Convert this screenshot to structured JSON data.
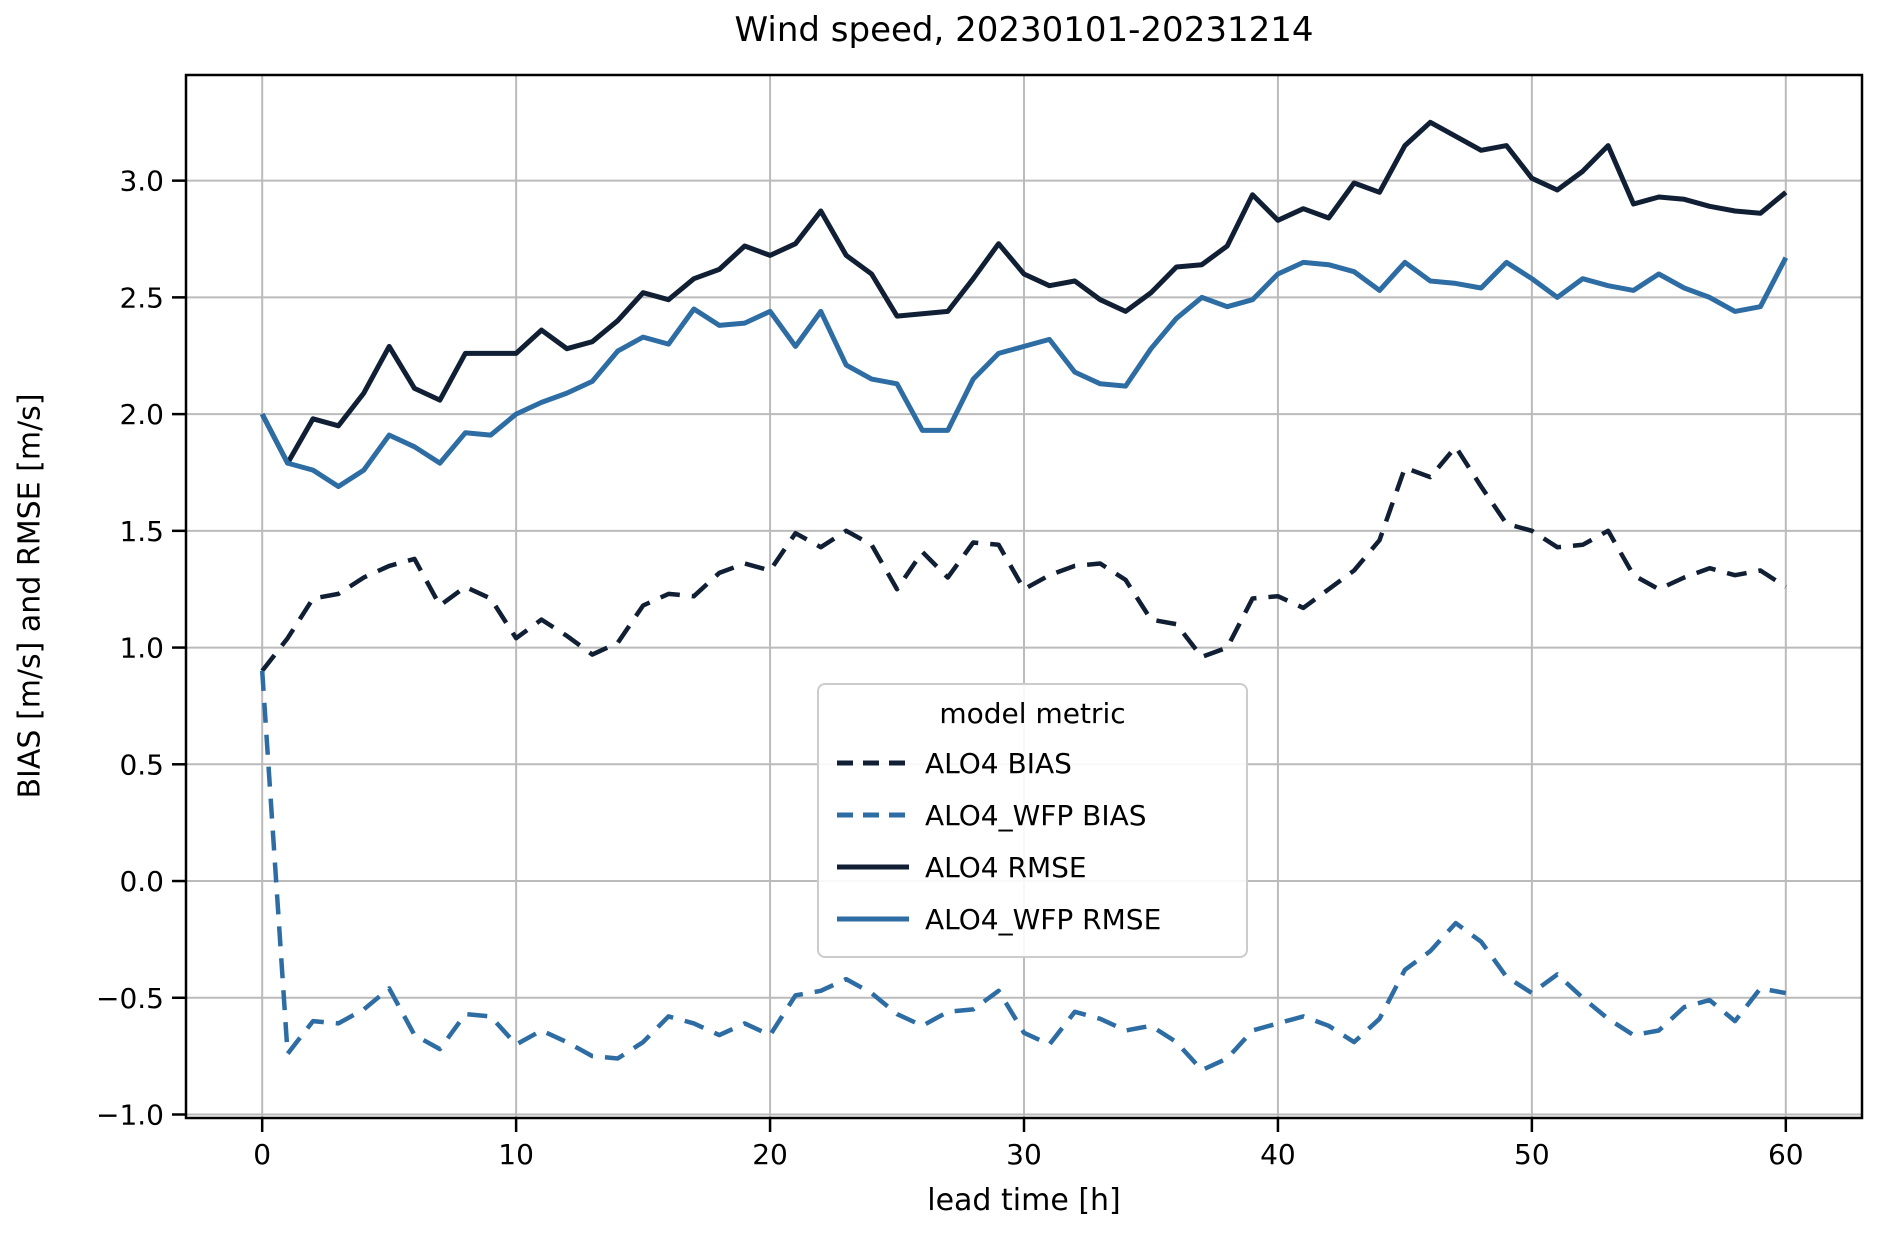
{
  "chart": {
    "title": "Wind speed, 20230101-20231214",
    "xlabel": "lead time [h]",
    "ylabel": "BIAS [m/s] and RMSE [m/s]"
  },
  "legend": {
    "title": "model metric",
    "entries": [
      {
        "label": "ALO4 BIAS",
        "color": "#111f35",
        "line_style": "dashed"
      },
      {
        "label": "ALO4_WFP BIAS",
        "color": "#2d6da4",
        "line_style": "dashed"
      },
      {
        "label": "ALO4 RMSE",
        "color": "#111f35",
        "line_style": "solid"
      },
      {
        "label": "ALO4_WFP RMSE",
        "color": "#2d6da4",
        "line_style": "solid"
      }
    ]
  },
  "colors": {
    "dark_navy": "#111f35",
    "steel_blue": "#2d6da4",
    "grid": "#bbbbbb",
    "spine": "#000000",
    "text": "#000000",
    "legend_border": "#cccccc"
  },
  "chart_data": {
    "type": "line",
    "title": "Wind speed, 20230101-20231214",
    "xlabel": "lead time [h]",
    "ylabel": "BIAS [m/s] and RMSE [m/s]",
    "grid": true,
    "legend_position": "center",
    "xlim": [
      -3.0,
      63.0
    ],
    "ylim": [
      -1.015,
      3.4525
    ],
    "xticks": [
      0,
      10,
      20,
      30,
      40,
      50,
      60
    ],
    "xtick_labels": [
      "0",
      "10",
      "20",
      "30",
      "40",
      "50",
      "60"
    ],
    "ytick_values": [
      -1.0,
      -0.5,
      0.0,
      0.5,
      1.0,
      1.5,
      2.0,
      2.5,
      3.0
    ],
    "ytick_labels": [
      "−1.0",
      "−0.5",
      "0.0",
      "0.5",
      "1.0",
      "1.5",
      "2.0",
      "2.5",
      "3.0"
    ],
    "x": [
      0,
      1,
      2,
      3,
      4,
      5,
      6,
      7,
      8,
      9,
      10,
      11,
      12,
      13,
      14,
      15,
      16,
      17,
      18,
      19,
      20,
      21,
      22,
      23,
      24,
      25,
      26,
      27,
      28,
      29,
      30,
      31,
      32,
      33,
      34,
      35,
      36,
      37,
      38,
      39,
      40,
      41,
      42,
      43,
      44,
      45,
      46,
      47,
      48,
      49,
      50,
      51,
      52,
      53,
      54,
      55,
      56,
      57,
      58,
      59,
      60
    ],
    "series": [
      {
        "name": "ALO4 BIAS",
        "model": "ALO4",
        "metric": "BIAS",
        "color": "#111f35",
        "style": "dashed",
        "values": [
          0.9,
          1.04,
          1.21,
          1.23,
          1.3,
          1.35,
          1.38,
          1.18,
          1.26,
          1.21,
          1.04,
          1.12,
          1.05,
          0.97,
          1.02,
          1.18,
          1.23,
          1.22,
          1.32,
          1.36,
          1.33,
          1.49,
          1.43,
          1.5,
          1.44,
          1.25,
          1.41,
          1.3,
          1.45,
          1.44,
          1.25,
          1.31,
          1.35,
          1.36,
          1.29,
          1.12,
          1.1,
          0.96,
          1.0,
          1.21,
          1.22,
          1.17,
          1.25,
          1.33,
          1.46,
          1.77,
          1.73,
          1.86,
          1.69,
          1.53,
          1.5,
          1.43,
          1.44,
          1.5,
          1.31,
          1.25,
          1.3,
          1.34,
          1.31,
          1.33,
          1.26
        ]
      },
      {
        "name": "ALO4_WFP BIAS",
        "model": "ALO4_WFP",
        "metric": "BIAS",
        "color": "#2d6da4",
        "style": "dashed",
        "values": [
          0.9,
          -0.74,
          -0.6,
          -0.61,
          -0.55,
          -0.46,
          -0.66,
          -0.72,
          -0.57,
          -0.58,
          -0.7,
          -0.64,
          -0.69,
          -0.75,
          -0.76,
          -0.69,
          -0.58,
          -0.61,
          -0.66,
          -0.61,
          -0.66,
          -0.49,
          -0.47,
          -0.42,
          -0.48,
          -0.57,
          -0.62,
          -0.56,
          -0.55,
          -0.47,
          -0.65,
          -0.7,
          -0.56,
          -0.59,
          -0.64,
          -0.62,
          -0.69,
          -0.81,
          -0.76,
          -0.64,
          -0.61,
          -0.58,
          -0.62,
          -0.69,
          -0.59,
          -0.38,
          -0.3,
          -0.18,
          -0.26,
          -0.41,
          -0.48,
          -0.4,
          -0.5,
          -0.59,
          -0.66,
          -0.64,
          -0.54,
          -0.51,
          -0.6,
          -0.46,
          -0.48
        ]
      },
      {
        "name": "ALO4 RMSE",
        "model": "ALO4",
        "metric": "RMSE",
        "color": "#111f35",
        "style": "solid",
        "values": [
          2.0,
          1.79,
          1.98,
          1.95,
          2.09,
          2.29,
          2.11,
          2.06,
          2.26,
          2.26,
          2.26,
          2.36,
          2.28,
          2.31,
          2.4,
          2.52,
          2.49,
          2.58,
          2.62,
          2.72,
          2.68,
          2.73,
          2.87,
          2.68,
          2.6,
          2.42,
          2.43,
          2.44,
          2.58,
          2.73,
          2.6,
          2.55,
          2.57,
          2.49,
          2.44,
          2.52,
          2.63,
          2.64,
          2.72,
          2.94,
          2.83,
          2.88,
          2.84,
          2.99,
          2.95,
          3.15,
          3.25,
          3.19,
          3.13,
          3.15,
          3.01,
          2.96,
          3.04,
          3.15,
          2.9,
          2.93,
          2.92,
          2.89,
          2.87,
          2.86,
          2.95
        ]
      },
      {
        "name": "ALO4_WFP RMSE",
        "model": "ALO4_WFP",
        "metric": "RMSE",
        "color": "#2d6da4",
        "style": "solid",
        "values": [
          2.0,
          1.79,
          1.76,
          1.69,
          1.76,
          1.91,
          1.86,
          1.79,
          1.92,
          1.91,
          2.0,
          2.05,
          2.09,
          2.14,
          2.27,
          2.33,
          2.3,
          2.45,
          2.38,
          2.39,
          2.44,
          2.29,
          2.44,
          2.21,
          2.15,
          2.13,
          1.93,
          1.93,
          2.15,
          2.26,
          2.29,
          2.32,
          2.18,
          2.13,
          2.12,
          2.28,
          2.41,
          2.5,
          2.46,
          2.49,
          2.6,
          2.65,
          2.64,
          2.61,
          2.53,
          2.65,
          2.57,
          2.56,
          2.54,
          2.65,
          2.58,
          2.5,
          2.58,
          2.55,
          2.53,
          2.6,
          2.54,
          2.5,
          2.44,
          2.46,
          2.67
        ]
      }
    ]
  }
}
